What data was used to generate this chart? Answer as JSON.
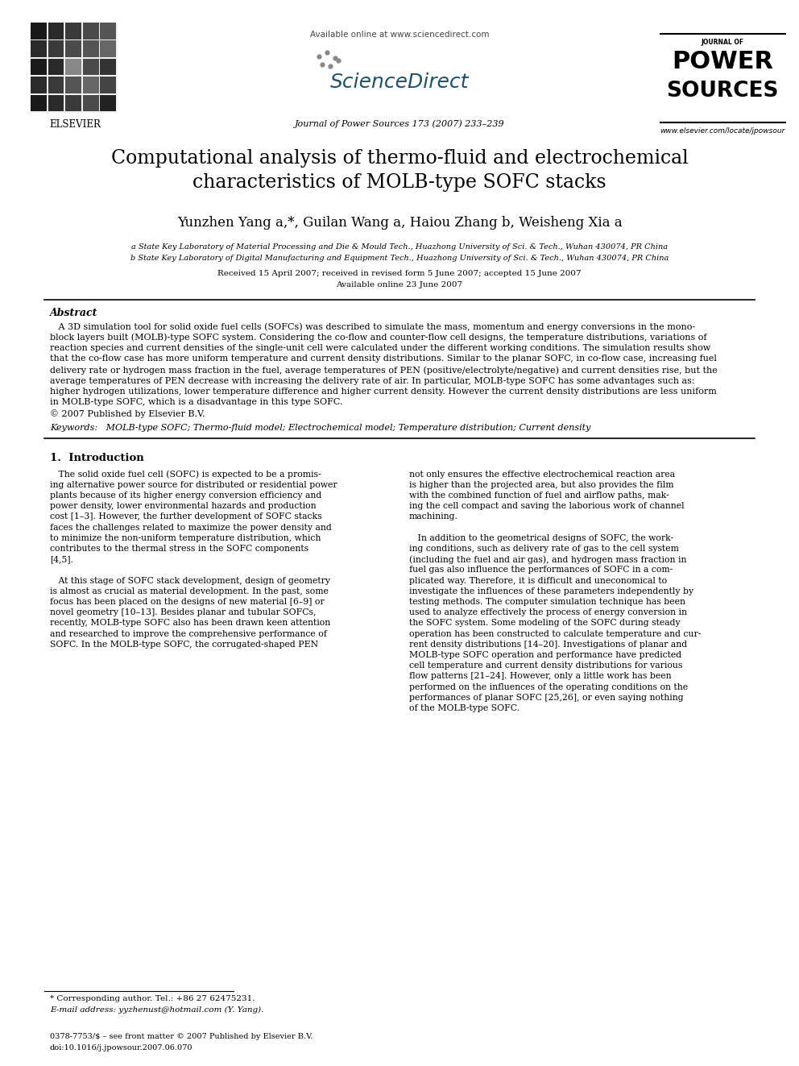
{
  "page_bg": "#ffffff",
  "header_available": "Available online at www.sciencedirect.com",
  "header_sciencedirect": "ScienceDirect",
  "header_journal": "Journal of Power Sources 173 (2007) 233–239",
  "header_elsevier": "ELSEVIER",
  "header_ps_line1": "JOURNAL OF",
  "header_ps_line2": "POWER",
  "header_ps_line3": "SOURCES",
  "header_website": "www.elsevier.com/locate/jpowsour",
  "title_line1": "Computational analysis of thermo-fluid and electrochemical",
  "title_line2": "characteristics of MOLB-type SOFC stacks",
  "authors": "Yunzhen Yang a,*, Guilan Wang a, Haiou Zhang b, Weisheng Xia a",
  "affil_a": "a State Key Laboratory of Material Processing and Die & Mould Tech., Huazhong University of Sci. & Tech., Wuhan 430074, PR China",
  "affil_b": "b State Key Laboratory of Digital Manufacturing and Equipment Tech., Huazhong University of Sci. & Tech., Wuhan 430074, PR China",
  "received": "Received 15 April 2007; received in revised form 5 June 2007; accepted 15 June 2007",
  "available_online": "Available online 23 June 2007",
  "abstract_head": "Abstract",
  "abstract_lines": [
    "   A 3D simulation tool for solid oxide fuel cells (SOFCs) was described to simulate the mass, momentum and energy conversions in the mono-",
    "block layers built (MOLB)-type SOFC system. Considering the co-flow and counter-flow cell designs, the temperature distributions, variations of",
    "reaction species and current densities of the single-unit cell were calculated under the different working conditions. The simulation results show",
    "that the co-flow case has more uniform temperature and current density distributions. Similar to the planar SOFC, in co-flow case, increasing fuel",
    "delivery rate or hydrogen mass fraction in the fuel, average temperatures of PEN (positive/electrolyte/negative) and current densities rise, but the",
    "average temperatures of PEN decrease with increasing the delivery rate of air. In particular, MOLB-type SOFC has some advantages such as:",
    "higher hydrogen utilizations, lower temperature difference and higher current density. However the current density distributions are less uniform",
    "in MOLB-type SOFC, which is a disadvantage in this type SOFC.",
    "© 2007 Published by Elsevier B.V."
  ],
  "keywords": "Keywords:   MOLB-type SOFC; Thermo-fluid model; Electrochemical model; Temperature distribution; Current density",
  "intro_heading": "1.  Introduction",
  "col1_lines": [
    "   The solid oxide fuel cell (SOFC) is expected to be a promis-",
    "ing alternative power source for distributed or residential power",
    "plants because of its higher energy conversion efficiency and",
    "power density, lower environmental hazards and production",
    "cost [1–3]. However, the further development of SOFC stacks",
    "faces the challenges related to maximize the power density and",
    "to minimize the non-uniform temperature distribution, which",
    "contributes to the thermal stress in the SOFC components",
    "[4,5].",
    "",
    "   At this stage of SOFC stack development, design of geometry",
    "is almost as crucial as material development. In the past, some",
    "focus has been placed on the designs of new material [6–9] or",
    "novel geometry [10–13]. Besides planar and tubular SOFCs,",
    "recently, MOLB-type SOFC also has been drawn keen attention",
    "and researched to improve the comprehensive performance of",
    "SOFC. In the MOLB-type SOFC, the corrugated-shaped PEN"
  ],
  "col2_lines": [
    "not only ensures the effective electrochemical reaction area",
    "is higher than the projected area, but also provides the film",
    "with the combined function of fuel and airflow paths, mak-",
    "ing the cell compact and saving the laborious work of channel",
    "machining.",
    "",
    "   In addition to the geometrical designs of SOFC, the work-",
    "ing conditions, such as delivery rate of gas to the cell system",
    "(including the fuel and air gas), and hydrogen mass fraction in",
    "fuel gas also influence the performances of SOFC in a com-",
    "plicated way. Therefore, it is difficult and uneconomical to",
    "investigate the influences of these parameters independently by",
    "testing methods. The computer simulation technique has been",
    "used to analyze effectively the process of energy conversion in",
    "the SOFC system. Some modeling of the SOFC during steady",
    "operation has been constructed to calculate temperature and cur-",
    "rent density distributions [14–20]. Investigations of planar and",
    "MOLB-type SOFC operation and performance have predicted",
    "cell temperature and current density distributions for various",
    "flow patterns [21–24]. However, only a little work has been",
    "performed on the influences of the operating conditions on the",
    "performances of planar SOFC [25,26], or even saying nothing",
    "of the MOLB-type SOFC."
  ],
  "footnote1": "* Corresponding author. Tel.: +86 27 62475231.",
  "footnote2": "E-mail address: yyzhenust@hotmail.com (Y. Yang).",
  "footer1": "0378-7753/$ – see front matter © 2007 Published by Elsevier B.V.",
  "footer2": "doi:10.1016/j.jpowsour.2007.06.070"
}
